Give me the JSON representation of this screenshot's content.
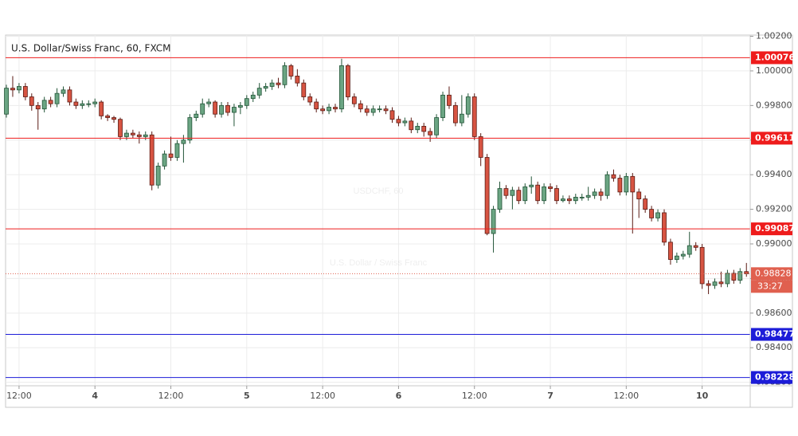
{
  "chart_data": {
    "type": "candlestick",
    "title": "U.S. Dollar/Swiss Franc, 60, FXCM",
    "watermark": "USDCHF, 60",
    "watermark_subtitle": "U.S. Dollar / Swiss Franc",
    "up_color": "#6ba583",
    "down_color": "#d75442",
    "grid": true,
    "x": [
      0,
      1,
      2,
      3,
      4,
      5,
      6,
      7,
      8,
      9,
      10,
      11,
      12,
      13,
      14,
      15,
      16,
      17,
      18,
      19,
      20,
      21,
      22,
      23,
      24,
      25,
      26,
      27,
      28,
      29,
      30,
      31,
      32,
      33,
      34,
      35,
      36,
      37,
      38,
      39,
      40,
      41,
      42,
      43,
      44,
      45,
      46,
      47,
      48,
      49,
      50,
      51,
      52,
      53,
      54,
      55,
      56,
      57,
      58,
      59,
      60,
      61,
      62,
      63,
      64,
      65,
      66,
      67,
      68,
      69,
      70,
      71,
      72,
      73,
      74,
      75,
      76,
      77,
      78,
      79,
      80,
      81,
      82,
      83,
      84,
      85,
      86,
      87,
      88,
      89,
      90,
      91,
      92,
      93,
      94,
      95,
      96,
      97,
      98,
      99,
      100,
      101,
      102,
      103,
      104,
      105,
      106,
      107,
      108,
      109,
      110,
      111,
      112,
      113,
      114,
      115,
      116,
      117
    ],
    "open": [
      0.9975,
      0.999,
      0.9989,
      0.9991,
      0.9985,
      0.998,
      0.9978,
      0.9983,
      0.9981,
      0.9987,
      0.9989,
      0.9982,
      0.998,
      0.9981,
      0.9981,
      0.9982,
      0.9974,
      0.9973,
      0.9972,
      0.9962,
      0.9964,
      0.9963,
      0.9962,
      0.9963,
      0.9934,
      0.9945,
      0.9952,
      0.995,
      0.9958,
      0.996,
      0.9973,
      0.9975,
      0.9981,
      0.9982,
      0.9975,
      0.998,
      0.9976,
      0.9979,
      0.998,
      0.9984,
      0.9986,
      0.999,
      0.9991,
      0.9993,
      0.9992,
      1.0003,
      0.9997,
      0.9993,
      0.9985,
      0.9982,
      0.9978,
      0.9977,
      0.9979,
      0.9978,
      1.0003,
      0.9985,
      0.9981,
      0.9978,
      0.9976,
      0.9978,
      0.9978,
      0.9977,
      0.9972,
      0.997,
      0.9971,
      0.9966,
      0.9968,
      0.9965,
      0.9963,
      0.9973,
      0.9986,
      0.998,
      0.997,
      0.9975,
      0.9985,
      0.9962,
      0.995,
      0.9906,
      0.992,
      0.9932,
      0.9928,
      0.9931,
      0.9925,
      0.9933,
      0.9934,
      0.9925,
      0.9933,
      0.9932,
      0.9925,
      0.9926,
      0.9925,
      0.9927,
      0.9927,
      0.9928,
      0.993,
      0.9928,
      0.994,
      0.9938,
      0.993,
      0.9939,
      0.993,
      0.9926,
      0.992,
      0.9915,
      0.9918,
      0.9901,
      0.9891,
      0.9893,
      0.9894,
      0.9899,
      0.9898,
      0.9877,
      0.9876,
      0.9878,
      0.9877,
      0.9883,
      0.9879,
      0.9884
    ],
    "high": [
      0.9992,
      0.9997,
      0.9993,
      0.9993,
      0.9987,
      0.9982,
      0.9985,
      0.9985,
      0.999,
      0.9991,
      0.9991,
      0.9984,
      0.9983,
      0.9983,
      0.9984,
      0.9983,
      0.9975,
      0.9974,
      0.9973,
      0.9966,
      0.9966,
      0.9965,
      0.9965,
      0.9965,
      0.9947,
      0.9954,
      0.9962,
      0.996,
      0.9963,
      0.9975,
      0.9977,
      0.9984,
      0.9984,
      0.9983,
      0.9982,
      0.9982,
      0.9981,
      0.9982,
      0.9986,
      0.9988,
      0.9993,
      0.9993,
      0.9995,
      0.9996,
      1.0005,
      1.0004,
      1.0001,
      0.9995,
      0.9987,
      0.9984,
      0.998,
      0.9981,
      0.9981,
      1.0007,
      1.0004,
      0.9987,
      0.9983,
      0.998,
      0.998,
      0.998,
      0.998,
      0.9979,
      0.9974,
      0.9973,
      0.9973,
      0.997,
      0.997,
      0.9967,
      0.9975,
      0.9988,
      0.9991,
      0.9982,
      0.9986,
      0.9987,
      0.9987,
      0.9964,
      0.9952,
      0.9922,
      0.9936,
      0.9934,
      0.9933,
      0.9933,
      0.9935,
      0.9939,
      0.9936,
      0.9935,
      0.9935,
      0.9934,
      0.9928,
      0.9928,
      0.9929,
      0.9929,
      0.9933,
      0.9932,
      0.9932,
      0.9942,
      0.9943,
      0.994,
      0.9941,
      0.9941,
      0.9932,
      0.9928,
      0.9922,
      0.992,
      0.992,
      0.9903,
      0.9895,
      0.9896,
      0.9907,
      0.9901,
      0.99,
      0.9879,
      0.988,
      0.9884,
      0.9885,
      0.9885,
      0.9886,
      0.9889
    ],
    "low": [
      0.9973,
      0.9985,
      0.9987,
      0.9983,
      0.9977,
      0.9966,
      0.9976,
      0.9979,
      0.9979,
      0.9985,
      0.998,
      0.9978,
      0.9978,
      0.9979,
      0.9979,
      0.9972,
      0.9971,
      0.997,
      0.996,
      0.996,
      0.9961,
      0.9958,
      0.996,
      0.9931,
      0.9932,
      0.9943,
      0.9948,
      0.9948,
      0.9947,
      0.9958,
      0.9971,
      0.9973,
      0.9979,
      0.9973,
      0.9973,
      0.9974,
      0.9968,
      0.9975,
      0.9978,
      0.9982,
      0.9984,
      0.9988,
      0.9989,
      0.999,
      0.999,
      0.9995,
      0.9991,
      0.9983,
      0.998,
      0.9976,
      0.9975,
      0.9975,
      0.9976,
      0.9976,
      0.9983,
      0.9979,
      0.9976,
      0.9974,
      0.9974,
      0.9976,
      0.9975,
      0.997,
      0.9968,
      0.9968,
      0.9964,
      0.9964,
      0.9962,
      0.9959,
      0.9961,
      0.9971,
      0.9978,
      0.9968,
      0.9968,
      0.9973,
      0.996,
      0.9945,
      0.9905,
      0.9895,
      0.9918,
      0.9926,
      0.992,
      0.9923,
      0.9923,
      0.9929,
      0.9923,
      0.9923,
      0.993,
      0.9923,
      0.9924,
      0.9923,
      0.9923,
      0.9925,
      0.9925,
      0.9926,
      0.9925,
      0.9926,
      0.9936,
      0.9928,
      0.9928,
      0.9906,
      0.9915,
      0.9918,
      0.9913,
      0.9913,
      0.9899,
      0.9888,
      0.9889,
      0.9891,
      0.9892,
      0.9896,
      0.9874,
      0.9871,
      0.9874,
      0.9875,
      0.9875,
      0.9877,
      0.9877,
      0.9881
    ],
    "close": [
      0.999,
      0.9989,
      0.9991,
      0.9985,
      0.998,
      0.9978,
      0.9983,
      0.9981,
      0.9987,
      0.9989,
      0.9982,
      0.998,
      0.9981,
      0.9981,
      0.9982,
      0.9974,
      0.9973,
      0.9972,
      0.9962,
      0.9964,
      0.9963,
      0.9962,
      0.9963,
      0.9934,
      0.9945,
      0.9952,
      0.995,
      0.9958,
      0.996,
      0.9973,
      0.9975,
      0.9981,
      0.9982,
      0.9975,
      0.998,
      0.9976,
      0.9979,
      0.998,
      0.9984,
      0.9986,
      0.999,
      0.9991,
      0.9993,
      0.9992,
      1.0003,
      0.9997,
      0.9993,
      0.9985,
      0.9982,
      0.9978,
      0.9977,
      0.9979,
      0.9978,
      1.0003,
      0.9985,
      0.9981,
      0.9978,
      0.9976,
      0.9978,
      0.9978,
      0.9977,
      0.9972,
      0.997,
      0.9971,
      0.9966,
      0.9968,
      0.9965,
      0.9963,
      0.9973,
      0.9986,
      0.998,
      0.997,
      0.9975,
      0.9985,
      0.9962,
      0.995,
      0.9906,
      0.992,
      0.9932,
      0.9928,
      0.9931,
      0.9925,
      0.9933,
      0.9934,
      0.9925,
      0.9933,
      0.9932,
      0.9925,
      0.9926,
      0.9925,
      0.9927,
      0.9927,
      0.9928,
      0.993,
      0.9928,
      0.994,
      0.9938,
      0.993,
      0.9939,
      0.993,
      0.9926,
      0.992,
      0.9915,
      0.9918,
      0.9901,
      0.9891,
      0.9893,
      0.9894,
      0.9899,
      0.9898,
      0.9877,
      0.9876,
      0.9878,
      0.9877,
      0.9883,
      0.9879,
      0.9884,
      0.98828
    ],
    "xlim": [
      -0.13,
      117.6
    ],
    "xticks": [
      {
        "value": 2,
        "label": "12:00"
      },
      {
        "value": 14,
        "label": "4"
      },
      {
        "value": 26,
        "label": "12:00"
      },
      {
        "value": 38,
        "label": "5"
      },
      {
        "value": 50,
        "label": "12:00"
      },
      {
        "value": 62,
        "label": "6"
      },
      {
        "value": 74,
        "label": "12:00"
      },
      {
        "value": 86,
        "label": "7"
      },
      {
        "value": 98,
        "label": "12:00"
      },
      {
        "value": 110,
        "label": "10"
      }
    ],
    "ylim": [
      0.9818,
      1.00207
    ],
    "yticks": [
      {
        "value": 1.002,
        "label": "1.00200"
      },
      {
        "value": 1.0,
        "label": "1.00000"
      },
      {
        "value": 0.998,
        "label": "0.99800"
      },
      {
        "value": 0.996,
        "label": "0.99600"
      },
      {
        "value": 0.994,
        "label": "0.99400"
      },
      {
        "value": 0.992,
        "label": "0.99200"
      },
      {
        "value": 0.99,
        "label": "0.99000"
      },
      {
        "value": 0.988,
        "label": "0.98800"
      },
      {
        "value": 0.986,
        "label": "0.98600"
      },
      {
        "value": 0.984,
        "label": "0.98400"
      },
      {
        "value": 0.982,
        "label": "0.98200"
      }
    ],
    "levels": [
      {
        "value": 1.00076,
        "color": "#ee1c1c"
      },
      {
        "value": 0.99611,
        "color": "#ee1c1c"
      },
      {
        "value": 0.99087,
        "color": "#ee1c1c"
      },
      {
        "value": 0.98477,
        "color": "#1c1cd8"
      },
      {
        "value": 0.98228,
        "color": "#1c1cd8"
      }
    ],
    "last_price": {
      "value": 0.98828,
      "color": "#e0604f",
      "countdown": "33:27"
    }
  }
}
